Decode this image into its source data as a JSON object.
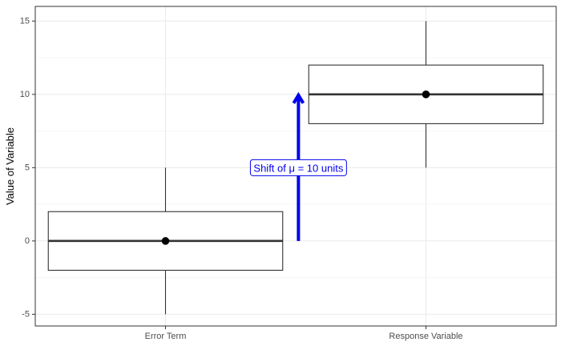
{
  "chart_data": {
    "type": "boxplot",
    "title": "",
    "xlabel": "",
    "ylabel": "Value of Variable",
    "ylim": [
      -5.8,
      16
    ],
    "y_ticks": [
      -5,
      0,
      5,
      10,
      15
    ],
    "y_tick_labels": [
      "-5",
      "0",
      "5",
      "10",
      "15"
    ],
    "grid": true,
    "categories": [
      "Error Term",
      "Response Variable"
    ],
    "boxes": [
      {
        "category": "Error Term",
        "min": -5,
        "q1": -2,
        "median": 0,
        "q3": 2,
        "max": 5,
        "mean": 0
      },
      {
        "category": "Response Variable",
        "min": 5,
        "q1": 8,
        "median": 10,
        "q3": 12,
        "max": 15,
        "mean": 10
      }
    ],
    "annotation": {
      "text_prefix": "Shift of ",
      "symbol": "μ",
      "text_suffix": " = 10 units",
      "arrow_from": 0,
      "arrow_to": 10,
      "label_y": 5,
      "color": "#0000ee"
    }
  }
}
